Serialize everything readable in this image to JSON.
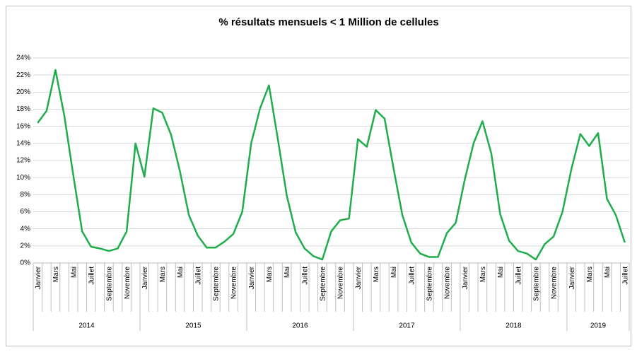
{
  "chart_data": {
    "type": "line",
    "title": "% résultats mensuels < 1 Million de cellules",
    "categories": [
      "Janvier",
      null,
      "Mars",
      null,
      "Mai",
      null,
      "Juillet",
      null,
      "Septembre",
      null,
      "Novembre",
      null,
      "Janvier",
      null,
      "Mars",
      null,
      "Mai",
      null,
      "Juillet",
      null,
      "Septembre",
      null,
      "Novembre",
      null,
      "Janvier",
      null,
      "Mars",
      null,
      "Mai",
      null,
      "Juillet",
      null,
      "Septembre",
      null,
      "Novembre",
      null,
      "Janvier",
      null,
      "Mars",
      null,
      "Mai",
      null,
      "Juillet",
      null,
      "Septembre",
      null,
      "Novembre",
      null,
      "Janvier",
      null,
      "Mars",
      null,
      "Mai",
      null,
      "Juillet",
      null,
      "Septembre",
      null,
      "Novembre",
      null,
      "Janvier",
      null,
      "Mars",
      null,
      "Mai",
      null,
      "Juillet"
    ],
    "groups": [
      {
        "label": "2014",
        "count": 12
      },
      {
        "label": "2015",
        "count": 12
      },
      {
        "label": "2016",
        "count": 12
      },
      {
        "label": "2017",
        "count": 12
      },
      {
        "label": "2018",
        "count": 12
      },
      {
        "label": "2019",
        "count": 7
      }
    ],
    "series": [
      {
        "color": "#1fad4c",
        "values": [
          16.4,
          17.8,
          22.6,
          17.2,
          10.3,
          3.7,
          1.9,
          1.7,
          1.4,
          1.7,
          3.7,
          14.0,
          10.1,
          18.1,
          17.6,
          15.0,
          10.7,
          5.6,
          3.2,
          1.8,
          1.8,
          2.5,
          3.4,
          6.0,
          14.0,
          18.1,
          20.8,
          14.5,
          7.9,
          3.6,
          1.7,
          0.8,
          0.4,
          3.7,
          5.0,
          5.2,
          14.5,
          13.6,
          17.9,
          16.9,
          11.1,
          5.6,
          2.4,
          1.1,
          0.7,
          0.7,
          3.5,
          4.7,
          9.7,
          14.0,
          16.6,
          12.8,
          5.7,
          2.6,
          1.4,
          1.1,
          0.4,
          2.2,
          3.1,
          6.0,
          11.0,
          15.1,
          13.7,
          15.2,
          7.5,
          5.6,
          2.4
        ]
      }
    ],
    "ylim": [
      0,
      24
    ],
    "yticks": [
      {
        "value": 0,
        "label": "0%"
      },
      {
        "value": 2,
        "label": "2%"
      },
      {
        "value": 4,
        "label": "4%"
      },
      {
        "value": 6,
        "label": "6%"
      },
      {
        "value": 8,
        "label": "8%"
      },
      {
        "value": 10,
        "label": "10%"
      },
      {
        "value": 12,
        "label": "12%"
      },
      {
        "value": 14,
        "label": "14%"
      },
      {
        "value": 16,
        "label": "16%"
      },
      {
        "value": 18,
        "label": "18%"
      },
      {
        "value": 20,
        "label": "20%"
      },
      {
        "value": 22,
        "label": "22%"
      },
      {
        "value": 24,
        "label": "24%"
      }
    ],
    "grid": true
  }
}
